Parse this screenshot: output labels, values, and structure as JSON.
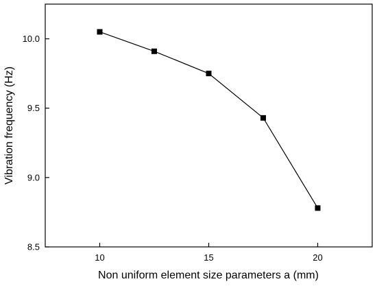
{
  "chart_data": {
    "type": "line",
    "title": "",
    "xlabel": "Non uniform element size parameters a (mm)",
    "ylabel": "Vibration frequency (Hz)",
    "x": [
      10,
      12.5,
      15,
      17.5,
      20
    ],
    "series": [
      {
        "values": [
          10.05,
          9.91,
          9.75,
          9.43,
          8.78
        ],
        "marker": "square"
      }
    ],
    "xlim": [
      7.5,
      22.5
    ],
    "ylim": [
      8.5,
      10.25
    ],
    "xticks": [
      10,
      15,
      20
    ],
    "xtick_labels": [
      "10",
      "15",
      "20"
    ],
    "yticks": [
      8.5,
      9.0,
      9.5,
      10.0
    ],
    "ytick_labels": [
      "8.5",
      "9.0",
      "9.5",
      "10.0"
    ],
    "grid": false,
    "legend": "none",
    "colors": {
      "line": "#000000",
      "marker": "#000000",
      "axis": "#000000"
    }
  }
}
